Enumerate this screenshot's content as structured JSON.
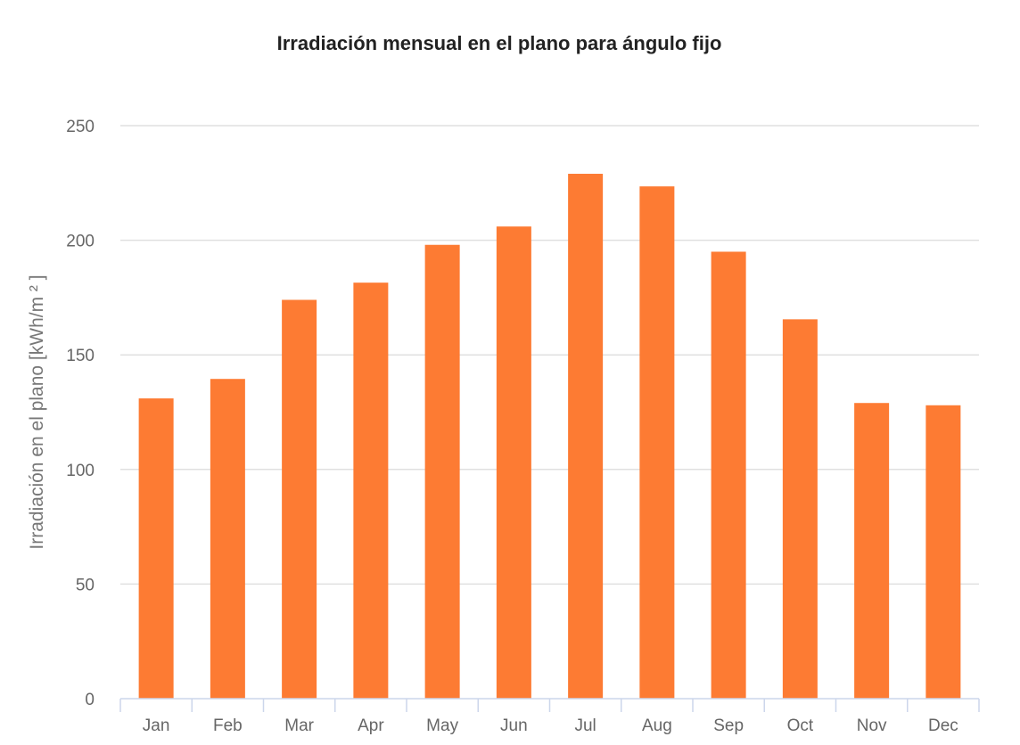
{
  "chart_data": {
    "type": "bar",
    "title": "Irradiación mensual en el plano para ángulo fijo",
    "xlabel": "",
    "ylabel": "Irradiación en el plano [kWh/m ² ]",
    "categories": [
      "Jan",
      "Feb",
      "Mar",
      "Apr",
      "May",
      "Jun",
      "Jul",
      "Aug",
      "Sep",
      "Oct",
      "Nov",
      "Dec"
    ],
    "values": [
      131,
      139.5,
      174,
      181.5,
      198,
      206,
      229,
      223.5,
      195,
      165.5,
      129,
      128
    ],
    "ylim": [
      0,
      250
    ],
    "yticks": [
      0,
      50,
      100,
      150,
      200,
      250
    ],
    "grid": true,
    "legend": "none",
    "bar_color": "#fd7b33",
    "grid_color": "#e0e0e0",
    "axis_color": "#ccd6eb"
  }
}
